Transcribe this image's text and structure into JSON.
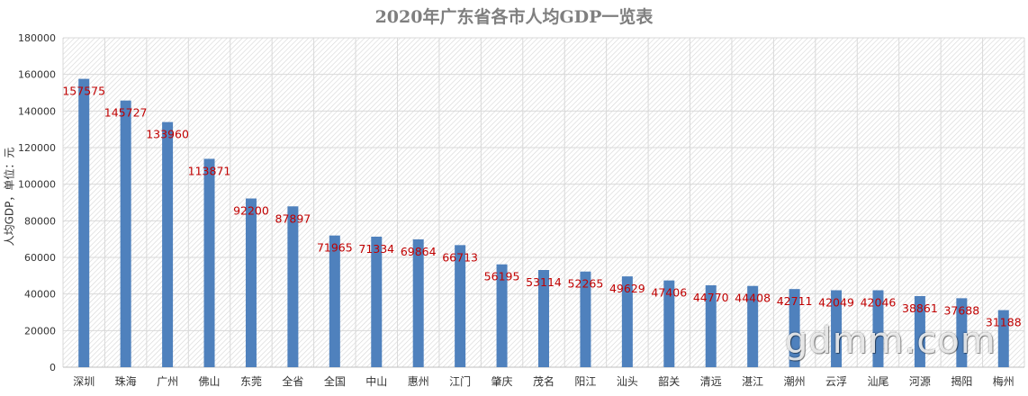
{
  "chart_data": {
    "type": "bar",
    "title": "2020年广东省各市人均GDP一览表",
    "ylabel": "人均GDP，单位：元",
    "xlabel": "",
    "ylim": [
      0,
      180000
    ],
    "yticks": [
      0,
      20000,
      40000,
      60000,
      80000,
      100000,
      120000,
      140000,
      160000,
      180000
    ],
    "grid": true,
    "categories": [
      "深圳",
      "珠海",
      "广州",
      "佛山",
      "东莞",
      "全省",
      "全国",
      "中山",
      "惠州",
      "江门",
      "肇庆",
      "茂名",
      "阳江",
      "汕头",
      "韶关",
      "清远",
      "湛江",
      "潮州",
      "云浮",
      "汕尾",
      "河源",
      "揭阳",
      "梅州"
    ],
    "values": [
      157575,
      145727,
      133960,
      113871,
      92200,
      87897,
      71965,
      71334,
      69864,
      66713,
      56195,
      53114,
      52265,
      49629,
      47406,
      44770,
      44408,
      42711,
      42049,
      42046,
      38861,
      37688,
      31188
    ],
    "data_labels": [
      "157575",
      "145727",
      "133960",
      "113871",
      "92200",
      "87897",
      "71965",
      "71334",
      "69864",
      "66713",
      "56195",
      "53114",
      "52265",
      "49629",
      "47406",
      "44770",
      "44408",
      "42711",
      "42049",
      "42046",
      "38861",
      "37688",
      "31188"
    ],
    "colors": {
      "bar": "#4f81bd",
      "label": "#c00000",
      "grid": "#d9d9d9"
    }
  },
  "watermark": "gdmm.com"
}
